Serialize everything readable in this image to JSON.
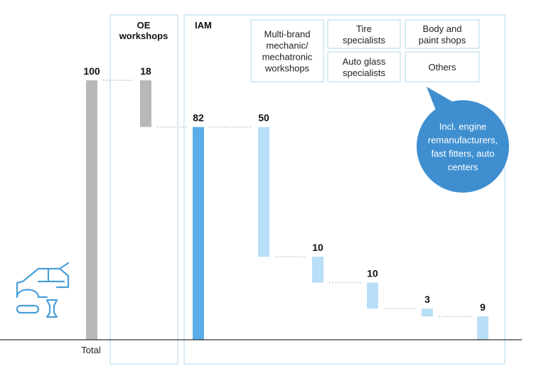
{
  "chart_data": {
    "type": "bar",
    "subtype": "waterfall",
    "title": "",
    "xlabel": "",
    "ylabel": "",
    "ylim": [
      0,
      100
    ],
    "categories": [
      "Total",
      "OE workshops",
      "IAM",
      "Multi-brand mechanic/ mechatronic workshops",
      "Tire specialists",
      "Auto glass specialists",
      "Body and paint shops",
      "Others"
    ],
    "values": [
      100,
      18,
      82,
      50,
      10,
      10,
      3,
      9
    ],
    "value_labels": [
      "100",
      "18",
      "82",
      "50",
      "10",
      "10",
      "3",
      "9"
    ],
    "axis_label": "Total",
    "groups": [
      {
        "label": "OE workshops",
        "lines": [
          "OE",
          "workshops"
        ]
      },
      {
        "label": "IAM",
        "lines": [
          "IAM"
        ]
      }
    ],
    "legend_boxes": [
      {
        "lines": [
          "Multi-brand",
          "mechanic/",
          "mechatronic",
          "workshops"
        ]
      },
      {
        "lines": [
          "Tire",
          "specialists"
        ]
      },
      {
        "lines": [
          "Auto glass",
          "specialists"
        ]
      },
      {
        "lines": [
          "Body and",
          "paint shops"
        ]
      },
      {
        "lines": [
          "Others"
        ]
      }
    ],
    "callout": {
      "lines": [
        "Incl. engine",
        "remanufacturers,",
        "fast fitters, auto",
        "centers"
      ]
    },
    "colors": {
      "total": "#b8b8b8",
      "oe": "#b8b8b8",
      "iam": "#5aaee8",
      "segments": "#b9def8",
      "frame": "#bfe0f0",
      "bubble": "#3f8fd0",
      "connector": "#aaaaaa",
      "baseline": "#333333",
      "icon": "#4a9fd8"
    },
    "icon": "car-on-lift-icon"
  }
}
